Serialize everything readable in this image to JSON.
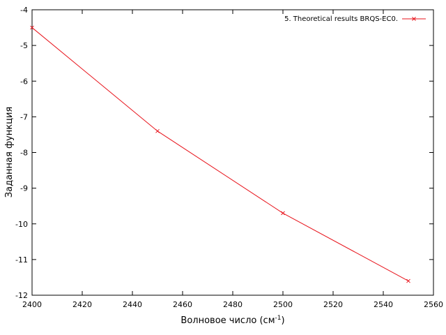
{
  "chart_data": {
    "type": "line",
    "xlabel": "Волновое число (см",
    "xlabel_superscript": "-1",
    "xlabel_suffix": ")",
    "ylabel": "Заданная функция",
    "xlim": [
      2400,
      2560
    ],
    "ylim": [
      -12,
      -4
    ],
    "x_ticks": [
      2400,
      2420,
      2440,
      2460,
      2480,
      2500,
      2520,
      2540,
      2560
    ],
    "y_ticks": [
      -4,
      -5,
      -6,
      -7,
      -8,
      -9,
      -10,
      -11,
      -12
    ],
    "grid": false,
    "legend_position": "top-right",
    "series": [
      {
        "name": "5. Theoretical results BRQS-EC0.",
        "color": "#e8141c",
        "marker": "x",
        "x": [
          2400,
          2450,
          2500,
          2550
        ],
        "y": [
          -4.5,
          -7.4,
          -9.7,
          -11.6
        ]
      }
    ]
  }
}
